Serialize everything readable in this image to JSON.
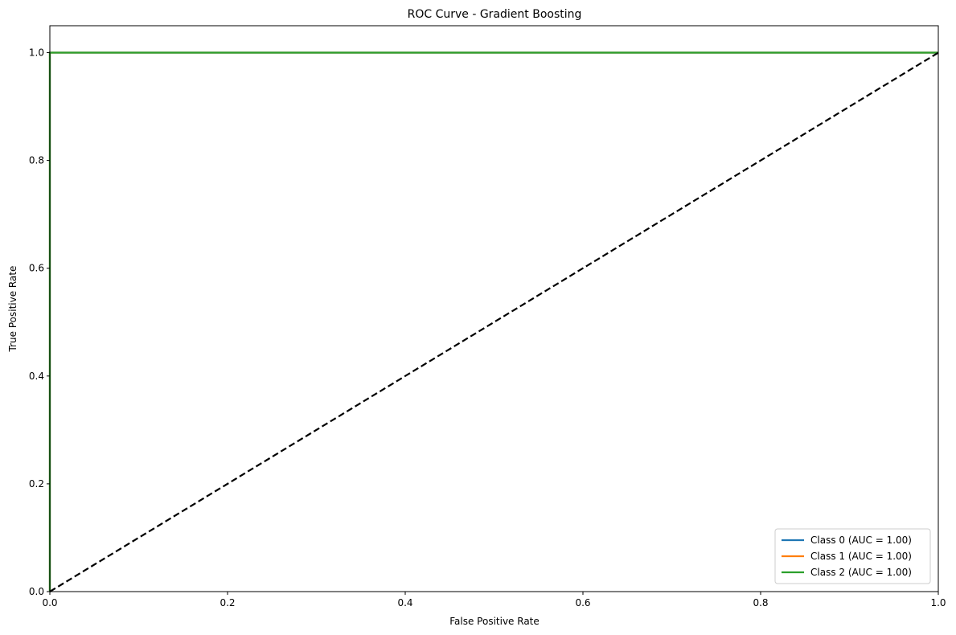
{
  "chart_data": {
    "type": "line",
    "title": "ROC Curve - Gradient Boosting",
    "xlabel": "False Positive Rate",
    "ylabel": "True Positive Rate",
    "xlim": [
      0.0,
      1.0
    ],
    "ylim": [
      0.0,
      1.05
    ],
    "xticks": [
      0.0,
      0.2,
      0.4,
      0.6,
      0.8,
      1.0
    ],
    "yticks": [
      0.0,
      0.2,
      0.4,
      0.6,
      0.8,
      1.0
    ],
    "xtick_labels": [
      "0.0",
      "0.2",
      "0.4",
      "0.6",
      "0.8",
      "1.0"
    ],
    "ytick_labels": [
      "0.0",
      "0.2",
      "0.4",
      "0.6",
      "0.8",
      "1.0"
    ],
    "grid": false,
    "legend_position": "bottom-right",
    "series": [
      {
        "name": "Class 0 (AUC = 1.00)",
        "color": "#1f77b4",
        "x": [
          0.0,
          0.0,
          1.0
        ],
        "y": [
          0.0,
          1.0,
          1.0
        ]
      },
      {
        "name": "Class 1 (AUC = 1.00)",
        "color": "#ff7f0e",
        "x": [
          0.0,
          0.0,
          1.0
        ],
        "y": [
          0.0,
          1.0,
          1.0
        ]
      },
      {
        "name": "Class 2 (AUC = 1.00)",
        "color": "#2ca02c",
        "x": [
          0.0,
          0.0,
          1.0
        ],
        "y": [
          0.0,
          1.0,
          1.0
        ]
      }
    ],
    "reference_line": {
      "color": "#000000",
      "style": "dashed",
      "x": [
        0.0,
        1.0
      ],
      "y": [
        0.0,
        1.0
      ]
    }
  }
}
